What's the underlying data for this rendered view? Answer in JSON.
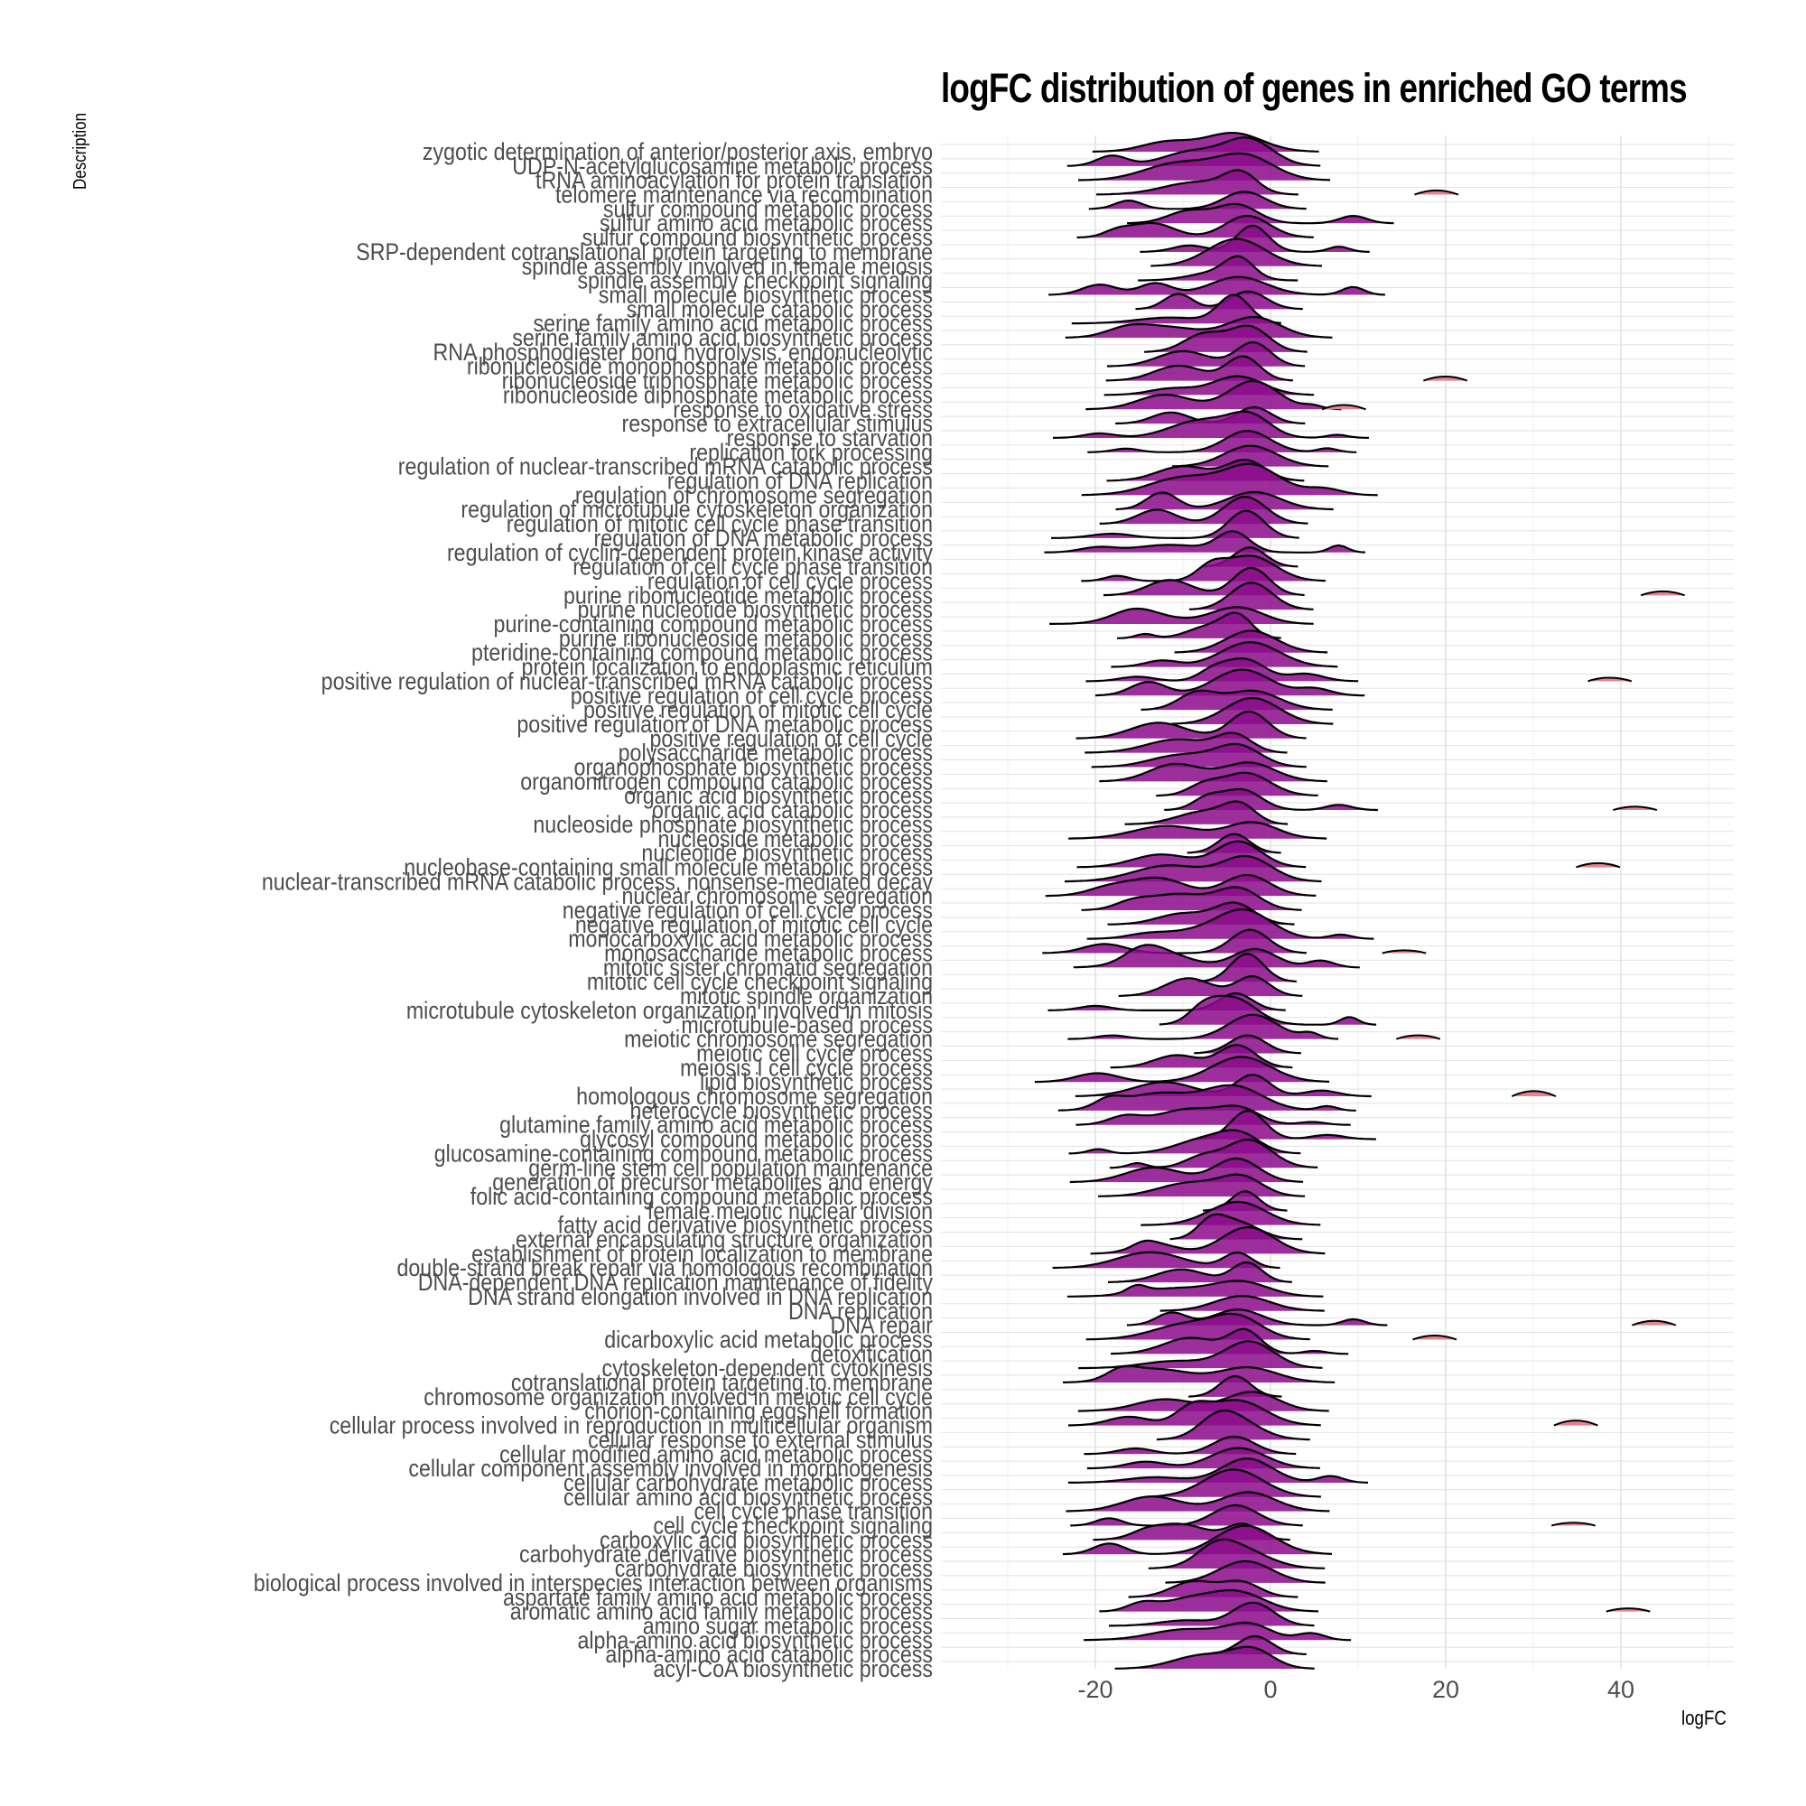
{
  "chart_data": {
    "type": "ridgeline",
    "title": "logFC distribution of genes in enriched GO terms",
    "xlabel": "logFC",
    "ylabel": "Description",
    "xlim": [
      -38,
      52
    ],
    "x_ticks": [
      -20,
      0,
      20,
      40
    ],
    "grid": true,
    "fill_color_low": "#8b0a8b",
    "fill_color_high": "#e8828c",
    "line_color": "#000000",
    "categories": [
      "zygotic determination of anterior/posterior axis, embryo",
      "UDP-N-acetylglucosamine metabolic process",
      "tRNA aminoacylation for protein translation",
      "telomere maintenance via recombination",
      "sulfur compound metabolic process",
      "sulfur amino acid metabolic process",
      "sulfur compound biosynthetic process",
      "SRP-dependent cotranslational protein targeting to membrane",
      "spindle assembly involved in female meiosis",
      "spindle assembly checkpoint signaling",
      "small molecule biosynthetic process",
      "small molecule catabolic process",
      "serine family amino acid metabolic process",
      "serine family amino acid biosynthetic process",
      "RNA phosphodiester bond hydrolysis, endonucleolytic",
      "ribonucleoside monophosphate metabolic process",
      "ribonucleoside triphosphate metabolic process",
      "ribonucleoside diphosphate metabolic process",
      "response to oxidative stress",
      "response to extracellular stimulus",
      "response to starvation",
      "replication fork processing",
      "regulation of nuclear-transcribed mRNA catabolic process",
      "regulation of DNA replication",
      "regulation of chromosome segregation",
      "regulation of microtubule cytoskeleton organization",
      "regulation of mitotic cell cycle phase transition",
      "regulation of DNA metabolic process",
      "regulation of cyclin-dependent protein kinase activity",
      "regulation of cell cycle phase transition",
      "regulation of cell cycle process",
      "purine ribonucleotide metabolic process",
      "purine nucleotide biosynthetic process",
      "purine-containing compound metabolic process",
      "purine ribonucleoside metabolic process",
      "pteridine-containing compound metabolic process",
      "protein localization to endoplasmic reticulum",
      "positive regulation of nuclear-transcribed mRNA catabolic process",
      "positive regulation of cell cycle process",
      "positive regulation of mitotic cell cycle",
      "positive regulation of DNA metabolic process",
      "positive regulation of cell cycle",
      "polysaccharide metabolic process",
      "organophosphate biosynthetic process",
      "organonitrogen compound catabolic process",
      "organic acid biosynthetic process",
      "organic acid catabolic process",
      "nucleoside phosphate biosynthetic process",
      "nucleoside metabolic process",
      "nucleotide biosynthetic process",
      "nucleobase-containing small molecule metabolic process",
      "nuclear-transcribed mRNA catabolic process, nonsense-mediated decay",
      "nuclear chromosome segregation",
      "negative regulation of cell cycle process",
      "negative regulation of mitotic cell cycle",
      "monocarboxylic acid metabolic process",
      "monosaccharide metabolic process",
      "mitotic sister chromatid segregation",
      "mitotic cell cycle checkpoint signaling",
      "mitotic spindle organization",
      "microtubule cytoskeleton organization involved in mitosis",
      "microtubule-based process",
      "meiotic chromosome segregation",
      "meiotic cell cycle process",
      "meiosis I cell cycle process",
      "lipid biosynthetic process",
      "homologous chromosome segregation",
      "heterocycle biosynthetic process",
      "glutamine family amino acid metabolic process",
      "glycosyl compound metabolic process",
      "glucosamine-containing compound metabolic process",
      "germ-line stem cell population maintenance",
      "generation of precursor metabolites and energy",
      "folic acid-containing compound metabolic process",
      "female meiotic nuclear division",
      "fatty acid derivative biosynthetic process",
      "external encapsulating structure organization",
      "establishment of protein localization to membrane",
      "double-strand break repair via homologous recombination",
      "DNA-dependent DNA replication maintenance of fidelity",
      "DNA strand elongation involved in DNA replication",
      "DNA replication",
      "DNA repair",
      "dicarboxylic acid metabolic process",
      "detoxification",
      "cytoskeleton-dependent cytokinesis",
      "cotranslational protein targeting to membrane",
      "chromosome organization involved in meiotic cell cycle",
      "chorion-containing eggshell formation",
      "cellular process involved in reproduction in multicellular organism",
      "cellular response to external stimulus",
      "cellular modified amino acid metabolic process",
      "cellular component assembly involved in morphogenesis",
      "cellular carbohydrate metabolic process",
      "cellular amino acid biosynthetic process",
      "cell cycle phase transition",
      "cell cycle checkpoint signaling",
      "carboxylic acid biosynthetic process",
      "carbohydrate derivative biosynthetic process",
      "carbohydrate biosynthetic process",
      "biological process involved in interspecies interaction between organisms",
      "aspartate family amino acid metabolic process",
      "aromatic amino acid family metabolic process",
      "amino sugar metabolic process",
      "alpha-amino acid biosynthetic process",
      "alpha-amino acid catabolic process",
      "acyl-CoA biosynthetic process"
    ],
    "series_note": "each row is a density ridge of gene logFC values; main mass centred near -3 with tails from about -30 to 47"
  }
}
